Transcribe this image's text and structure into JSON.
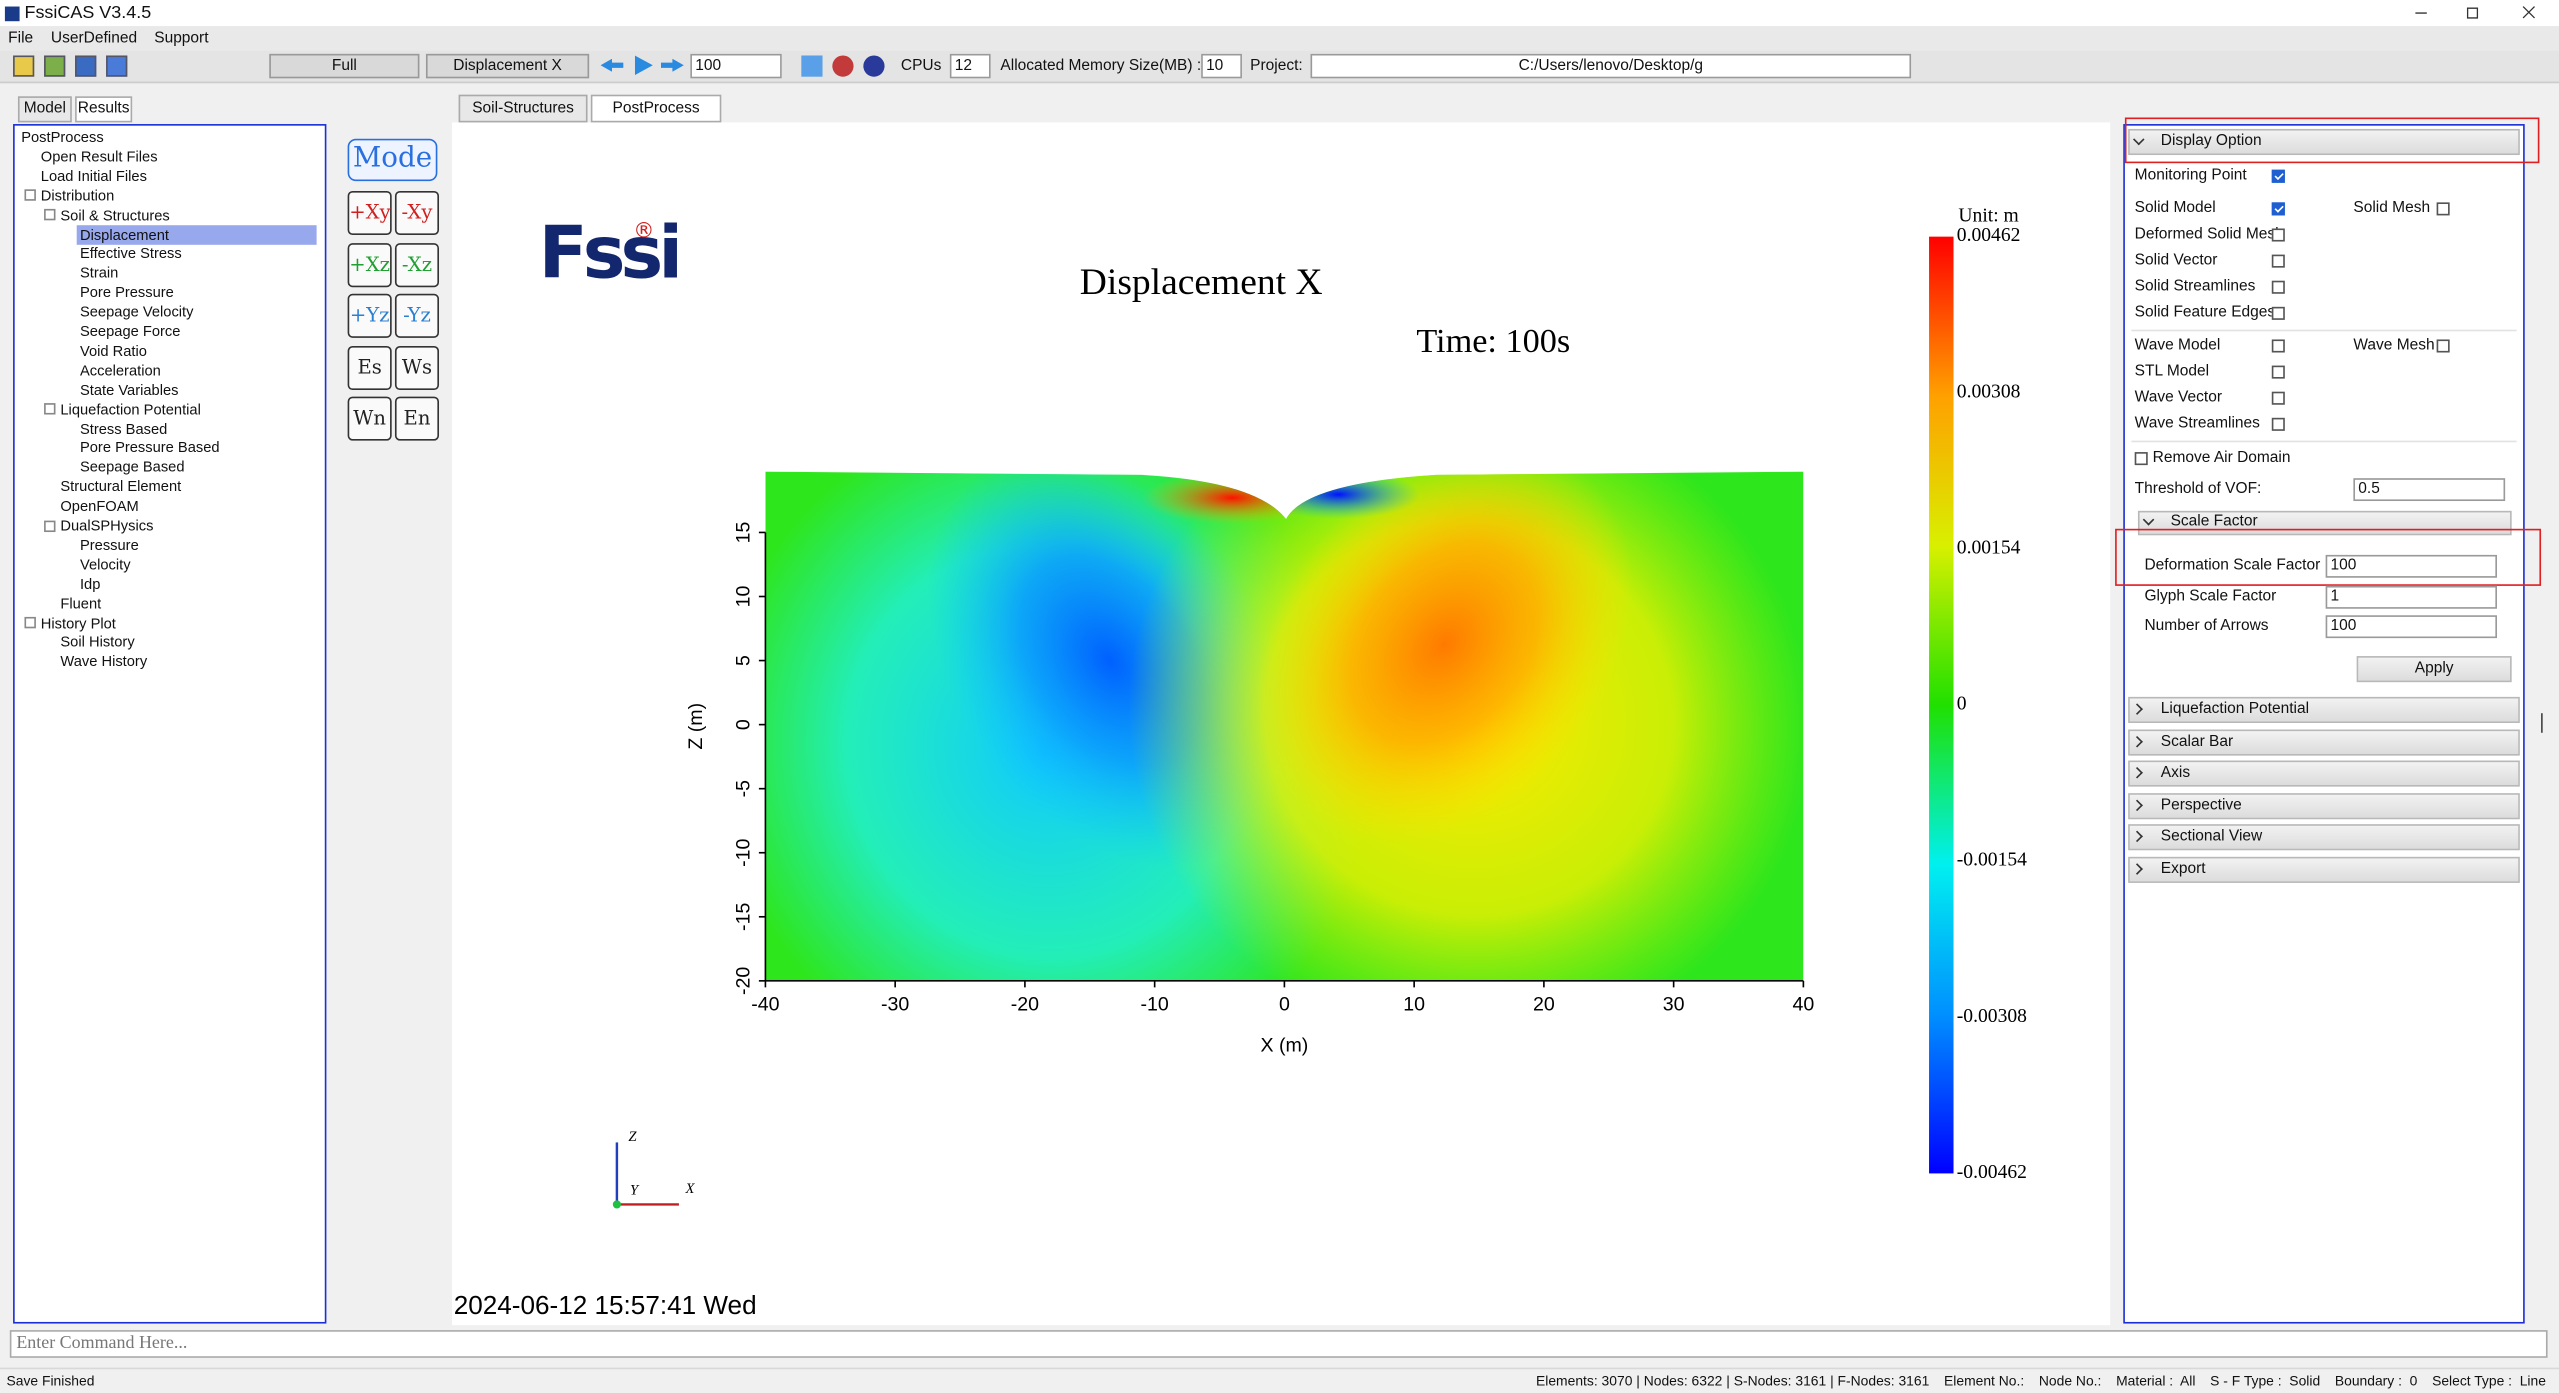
{
  "window": {
    "title": "FssiCAS V3.4.5"
  },
  "menu": [
    "File",
    "UserDefined",
    "Support"
  ],
  "toolbar": {
    "mode": "Full",
    "result": "Displacement X",
    "step": "100",
    "cpus_label": "CPUs",
    "cpus": "12",
    "memory_label": "Allocated Memory Size(MB) :",
    "memory": "10",
    "project_label": "Project:",
    "project": "C:/Users/lenovo/Desktop/g"
  },
  "left_tabs": [
    "Model",
    "Results"
  ],
  "tree": [
    {
      "label": "PostProcess",
      "level": 0
    },
    {
      "label": "Open Result Files",
      "level": 1
    },
    {
      "label": "Load Initial Files",
      "level": 1
    },
    {
      "label": "Distribution",
      "level": 1
    },
    {
      "label": "Soil & Structures",
      "level": 2
    },
    {
      "label": "Displacement",
      "level": 3,
      "selected": true
    },
    {
      "label": "Effective Stress",
      "level": 3
    },
    {
      "label": "Strain",
      "level": 3
    },
    {
      "label": "Pore Pressure",
      "level": 3
    },
    {
      "label": "Seepage Velocity",
      "level": 3
    },
    {
      "label": "Seepage Force",
      "level": 3
    },
    {
      "label": "Void Ratio",
      "level": 3
    },
    {
      "label": "Acceleration",
      "level": 3
    },
    {
      "label": "State Variables",
      "level": 3
    },
    {
      "label": "Liquefaction Potential",
      "level": 2
    },
    {
      "label": "Stress Based",
      "level": 3
    },
    {
      "label": "Pore Pressure Based",
      "level": 3
    },
    {
      "label": "Seepage Based",
      "level": 3
    },
    {
      "label": "Structural Element",
      "level": 2
    },
    {
      "label": "OpenFOAM",
      "level": 2
    },
    {
      "label": "DualSPHysics",
      "level": 2
    },
    {
      "label": "Pressure",
      "level": 3
    },
    {
      "label": "Velocity",
      "level": 3
    },
    {
      "label": "Idp",
      "level": 3
    },
    {
      "label": "Fluent",
      "level": 2
    },
    {
      "label": "History Plot",
      "level": 1
    },
    {
      "label": "Soil History",
      "level": 2
    },
    {
      "label": "Wave History",
      "level": 2
    }
  ],
  "view_buttons": {
    "mode": "Mode",
    "items": [
      "+Xy",
      "-Xy",
      "+Xz",
      "-Xz",
      "+Yz",
      "-Yz",
      "Es",
      "Ws",
      "Wn",
      "En"
    ]
  },
  "view_tabs": [
    "Soil-Structures",
    "PostProcess"
  ],
  "plot": {
    "logo": "Fssi",
    "logo_mark": "®",
    "title": "Displacement X",
    "time": "Time: 100s",
    "xlabel": "X (m)",
    "ylabel": "Z (m)",
    "xlim": [
      -40,
      40
    ],
    "xticks": [
      -40,
      -30,
      -20,
      -10,
      0,
      10,
      20,
      30,
      40
    ],
    "ylim": [
      -20,
      20
    ],
    "yticks": [
      -20,
      -15,
      -10,
      -5,
      0,
      5,
      10,
      15
    ],
    "colorbar": {
      "unit": "Unit:  m",
      "lim": [
        -0.00462,
        0.00462
      ],
      "ticks": [
        0.00462,
        0.00308,
        0.00154,
        0,
        -0.00154,
        -0.00308,
        -0.00462
      ]
    },
    "axes_triad": [
      "Z",
      "Y",
      "X"
    ],
    "timestamp": "2024-06-12 15:57:41 Wed"
  },
  "display_option": {
    "title": "Display Option",
    "groups": [
      [
        [
          {
            "label": "Monitoring Point",
            "checked": true
          }
        ],
        [
          {
            "label": "Solid Model",
            "checked": true
          },
          {
            "label": "Solid Mesh",
            "checked": false
          }
        ],
        [
          {
            "label": "Deformed Solid Mesh",
            "checked": false
          }
        ],
        [
          {
            "label": "Solid Vector",
            "checked": false
          }
        ],
        [
          {
            "label": "Solid Streamlines",
            "checked": false
          }
        ],
        [
          {
            "label": "Solid Feature Edges",
            "checked": false
          }
        ]
      ],
      [
        [
          {
            "label": "Wave Model",
            "checked": false
          },
          {
            "label": "Wave Mesh",
            "checked": false
          }
        ],
        [
          {
            "label": "STL Model",
            "checked": false
          }
        ],
        [
          {
            "label": "Wave Vector",
            "checked": false
          }
        ],
        [
          {
            "label": "Wave Streamlines",
            "checked": false
          }
        ]
      ]
    ],
    "remove_air": {
      "label": "Remove Air Domain",
      "checked": false
    },
    "vof": {
      "label": "Threshold of VOF:",
      "value": "0.5"
    },
    "scale_factor": {
      "title": "Scale Factor",
      "fields": [
        {
          "label": "Deformation Scale Factor",
          "value": "100"
        },
        {
          "label": "Glyph Scale Factor",
          "value": "1"
        },
        {
          "label": "Number of Arrows",
          "value": "100"
        }
      ],
      "apply": "Apply"
    },
    "sections": [
      "Liquefaction Potential",
      "Scalar Bar",
      "Axis",
      "Perspective",
      "Sectional View",
      "Export"
    ]
  },
  "command": {
    "placeholder": "Enter Command Here..."
  },
  "status": {
    "message": "Save Finished",
    "fields": [
      "Elements: 3070 | Nodes: 6322 | S-Nodes: 3161 | F-Nodes: 3161",
      "Element No.:",
      "Node No.:",
      "Material :  All",
      "S - F Type :  Solid",
      "Boundary :  0",
      "Select Type :  Line"
    ]
  }
}
